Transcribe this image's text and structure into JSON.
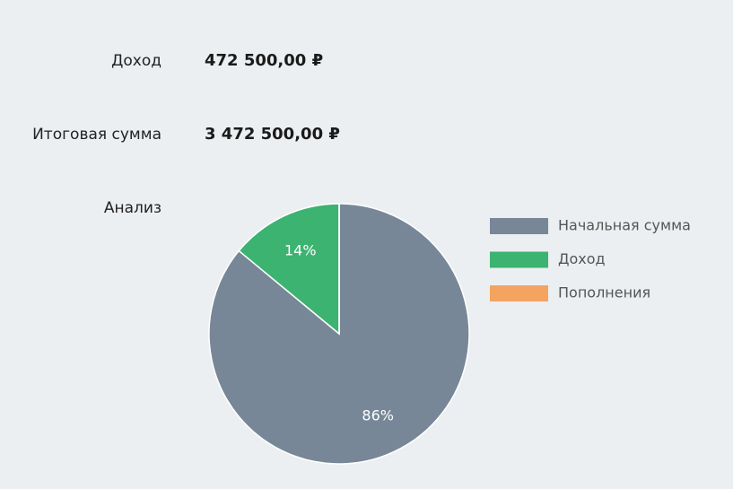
{
  "rows": [
    {
      "label": "Доход",
      "value": "472 500,00 ₽"
    },
    {
      "label": "Итоговая сумма",
      "value": "3 472 500,00 ₽"
    }
  ],
  "analysis_label": "Анализ",
  "chart_data": {
    "type": "pie",
    "categories": [
      "Начальная сумма",
      "Доход",
      "Пополнения"
    ],
    "values": [
      86,
      14,
      0
    ],
    "value_labels": [
      "86%",
      "14%",
      null
    ],
    "colors": [
      "#778797",
      "#3cb371",
      "#f4a460"
    ],
    "legend": "right"
  }
}
